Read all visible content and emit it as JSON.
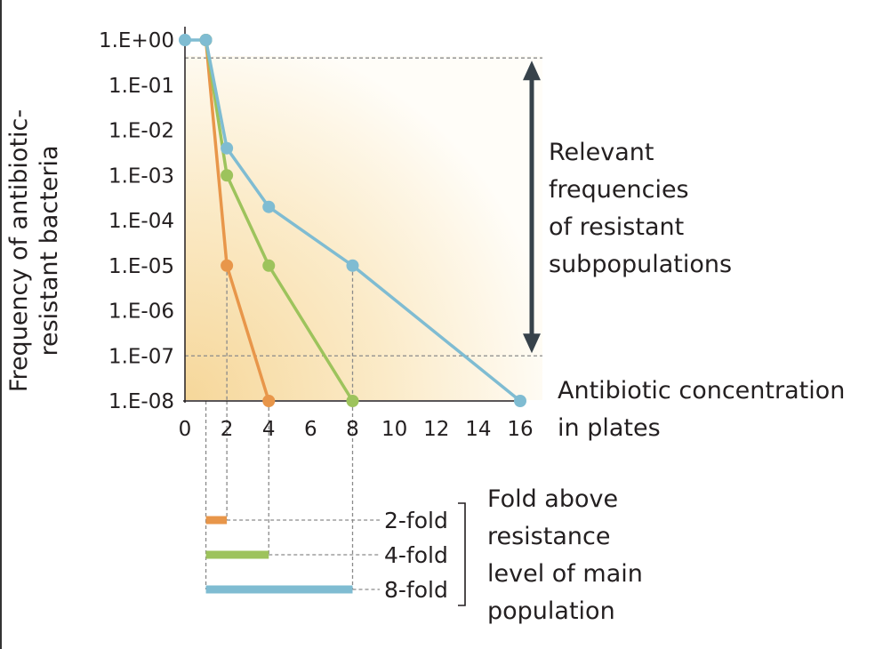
{
  "chart_data": {
    "type": "line",
    "yscale": "log",
    "ylabel_lines": [
      "Frequency of antibiotic-",
      "resistant bacteria"
    ],
    "xlabel_lines": [
      "Antibiotic concentration",
      "in plates"
    ],
    "x_ticks": [
      "0",
      "2",
      "4",
      "6",
      "8",
      "10",
      "12",
      "14",
      "16"
    ],
    "y_ticks": [
      "1.E+00",
      "1.E-01",
      "1.E-02",
      "1.E-03",
      "1.E-04",
      "1.E-05",
      "1.E-06",
      "1.E-07",
      "1.E-08"
    ],
    "xlim": [
      0,
      16
    ],
    "ylim": [
      1e-08,
      1
    ],
    "series": [
      {
        "color": "#e8964a",
        "points": [
          [
            1,
            1
          ],
          [
            2,
            1e-05
          ],
          [
            4,
            1e-08
          ]
        ]
      },
      {
        "color": "#9dc35c",
        "points": [
          [
            1,
            1
          ],
          [
            2,
            0.001
          ],
          [
            4,
            1e-05
          ],
          [
            8,
            1e-08
          ]
        ]
      },
      {
        "color": "#7fbcd2",
        "points": [
          [
            0,
            1
          ],
          [
            1,
            1
          ],
          [
            2,
            0.004
          ],
          [
            4,
            0.0002
          ],
          [
            8,
            1e-05
          ],
          [
            16,
            1e-08
          ]
        ]
      }
    ],
    "relevant_range": [
      1e-07,
      0.4
    ],
    "relevant_label_lines": [
      "Relevant",
      "frequencies",
      "of resistant",
      "subpopulations"
    ],
    "fold_bars": [
      {
        "label": "2-fold",
        "color": "#e8964a",
        "from": 1,
        "to": 2
      },
      {
        "label": "4-fold",
        "color": "#9dc35c",
        "from": 1,
        "to": 4
      },
      {
        "label": "8-fold",
        "color": "#7fbcd2",
        "from": 1,
        "to": 8
      }
    ],
    "fold_caption_lines": [
      "Fold above",
      "resistance",
      "level of main",
      "population"
    ],
    "arrow_color": "#37424a"
  }
}
